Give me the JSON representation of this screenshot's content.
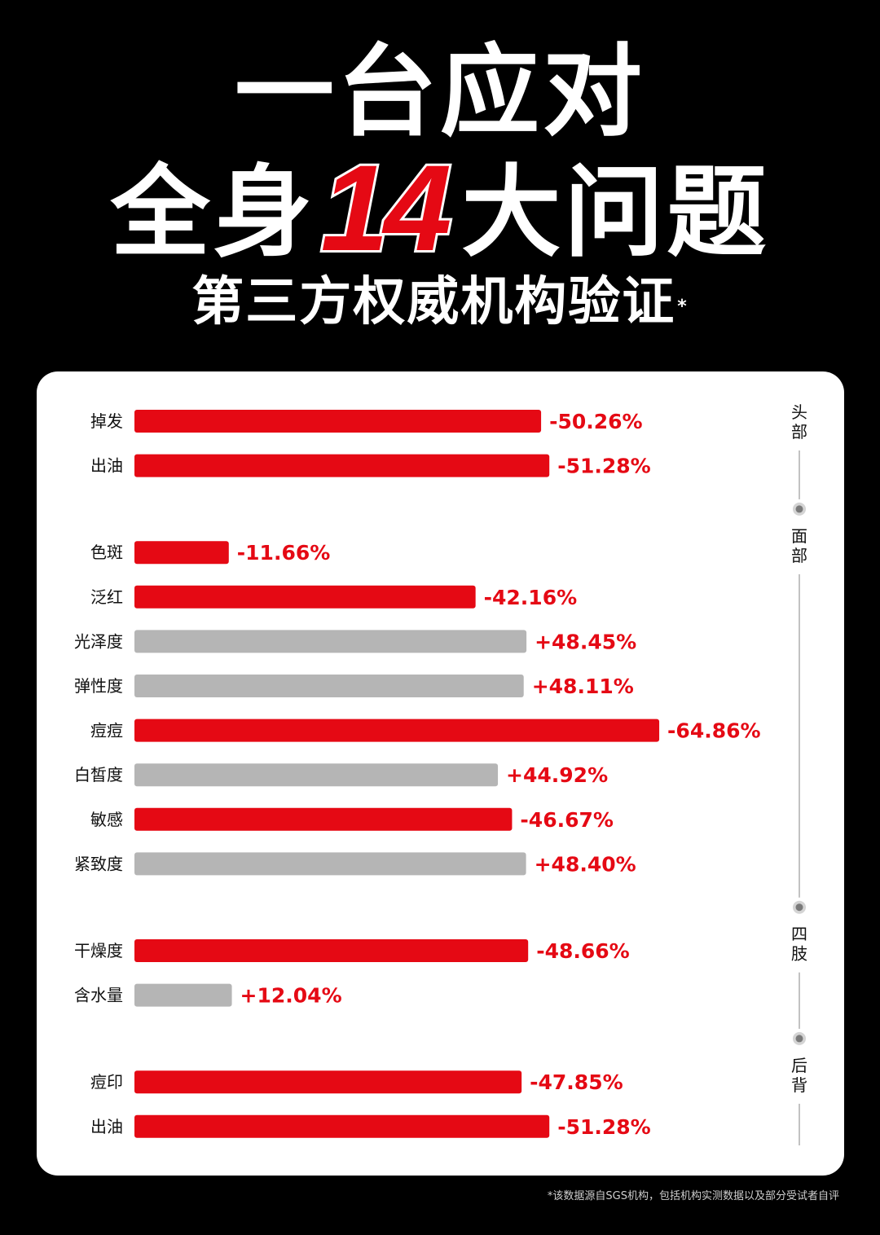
{
  "header": {
    "line1": "一台应对",
    "line2_before": "全身",
    "line2_number": "14",
    "line2_after": "大问题",
    "subtitle": "第三方权威机构验证",
    "subtitle_mark": "*"
  },
  "footnote": "*该数据源自SGS机构，包括机构实测数据以及部分受试者自评",
  "colors": {
    "background": "#000000",
    "decrease": "#e50914",
    "increase": "#b5b5b5",
    "value_text": "#e50914",
    "card": "#ffffff"
  },
  "chart_data": {
    "type": "bar",
    "orientation": "horizontal",
    "note": "negative values shown in red, positive values in gray",
    "groups": [
      {
        "name": "头部",
        "items": [
          {
            "label": "掉发",
            "value": -50.26,
            "display": "-50.26%"
          },
          {
            "label": "出油",
            "value": -51.28,
            "display": "-51.28%"
          }
        ]
      },
      {
        "name": "面部",
        "items": [
          {
            "label": "色斑",
            "value": -11.66,
            "display": "-11.66%"
          },
          {
            "label": "泛红",
            "value": -42.16,
            "display": "-42.16%"
          },
          {
            "label": "光泽度",
            "value": 48.45,
            "display": "+48.45%"
          },
          {
            "label": "弹性度",
            "value": 48.11,
            "display": "+48.11%"
          },
          {
            "label": "痘痘",
            "value": -64.86,
            "display": "-64.86%"
          },
          {
            "label": "白皙度",
            "value": 44.92,
            "display": "+44.92%"
          },
          {
            "label": "敏感",
            "value": -46.67,
            "display": "-46.67%"
          },
          {
            "label": "紧致度",
            "value": 48.4,
            "display": "+48.40%"
          }
        ]
      },
      {
        "name": "四肢",
        "items": [
          {
            "label": "干燥度",
            "value": -48.66,
            "display": "-48.66%"
          },
          {
            "label": "含水量",
            "value": 12.04,
            "display": "+12.04%"
          }
        ]
      },
      {
        "name": "后背",
        "items": [
          {
            "label": "痘印",
            "value": -47.85,
            "display": "-47.85%"
          },
          {
            "label": "出油",
            "value": -51.28,
            "display": "-51.28%"
          }
        ]
      }
    ]
  }
}
